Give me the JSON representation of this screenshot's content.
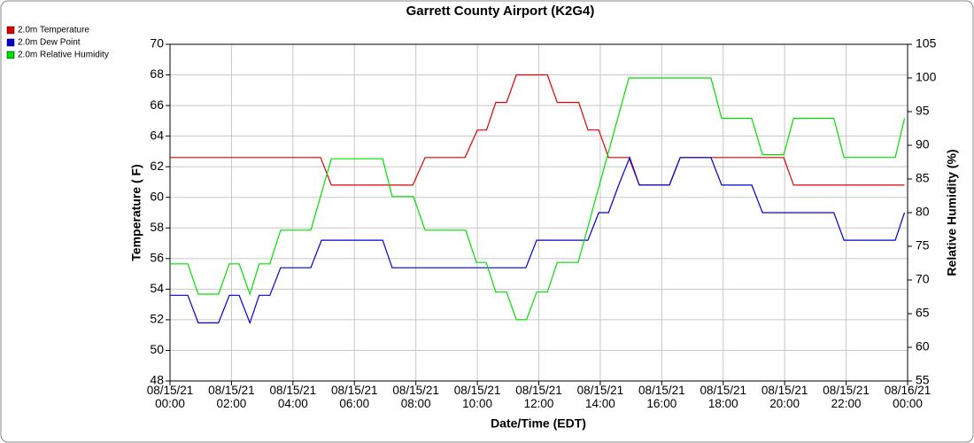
{
  "chart_data": {
    "type": "line",
    "title": "Garrett County Airport (K2G4)",
    "xlabel": "Date/Time (EDT)",
    "ylabel": "Temperature ( F)",
    "y2label": "Relative Humidity (%)",
    "grid": true,
    "legend": "upper left",
    "xlim": [
      0,
      24
    ],
    "xticks": [
      {
        "value": 0,
        "label": "08/15/21 00:00"
      },
      {
        "value": 2,
        "label": "08/15/21 02:00"
      },
      {
        "value": 4,
        "label": "08/15/21 04:00"
      },
      {
        "value": 6,
        "label": "08/15/21 06:00"
      },
      {
        "value": 8,
        "label": "08/15/21 08:00"
      },
      {
        "value": 10,
        "label": "08/15/21 10:00"
      },
      {
        "value": 12,
        "label": "08/15/21 12:00"
      },
      {
        "value": 14,
        "label": "08/15/21 14:00"
      },
      {
        "value": 16,
        "label": "08/15/21 16:00"
      },
      {
        "value": 18,
        "label": "08/15/21 18:00"
      },
      {
        "value": 20,
        "label": "08/15/21 20:00"
      },
      {
        "value": 22,
        "label": "08/15/21 22:00"
      },
      {
        "value": 24,
        "label": "08/16/21 00:00"
      }
    ],
    "ylim": [
      48,
      70
    ],
    "yticks": [
      48,
      50,
      52,
      54,
      56,
      58,
      60,
      62,
      64,
      66,
      68,
      70
    ],
    "y2lim": [
      55,
      105
    ],
    "y2ticks": [
      55,
      60,
      65,
      70,
      75,
      80,
      85,
      90,
      95,
      100,
      105
    ],
    "series": [
      {
        "name": "2.0m Temperature",
        "color": "#e00000",
        "x": [
          0,
          4.9,
          5.25,
          7.9,
          8.3,
          9.6,
          10.0,
          10.3,
          10.6,
          10.95,
          11.27,
          12.28,
          12.6,
          13.3,
          13.6,
          13.95,
          14.27,
          14.93,
          15.27,
          16.25,
          16.6,
          19.97,
          20.29,
          23.9
        ],
        "values": [
          62.6,
          62.6,
          60.8,
          60.8,
          62.6,
          62.6,
          64.4,
          64.4,
          66.2,
          66.2,
          68,
          68,
          66.2,
          66.2,
          64.4,
          64.4,
          62.6,
          62.6,
          60.8,
          60.8,
          62.6,
          62.6,
          60.8,
          60.8
        ]
      },
      {
        "name": "2.0m Dew Point",
        "color": "#0000d0",
        "x": [
          0,
          0.58,
          0.92,
          1.58,
          1.93,
          2.25,
          2.6,
          2.9,
          3.25,
          3.6,
          4.58,
          4.93,
          6.92,
          7.23,
          11.58,
          11.93,
          13.6,
          13.95,
          14.27,
          14.6,
          14.96,
          15.27,
          16.25,
          16.6,
          17.6,
          17.95,
          18.93,
          19.28,
          21.6,
          21.93,
          23.6,
          23.9
        ],
        "values": [
          53.6,
          53.6,
          51.8,
          51.8,
          53.6,
          53.6,
          51.8,
          53.6,
          53.6,
          55.4,
          55.4,
          57.2,
          57.2,
          55.4,
          55.4,
          57.2,
          57.2,
          59,
          59,
          60.8,
          62.6,
          60.8,
          60.8,
          62.6,
          62.6,
          60.8,
          60.8,
          59,
          59,
          57.2,
          57.2,
          59
        ]
      },
      {
        "name": "2.0m Relative Humidity",
        "color": "#00e000",
        "axis": "y2",
        "x": [
          0,
          0.58,
          0.92,
          1.58,
          1.93,
          2.25,
          2.6,
          2.9,
          3.25,
          3.6,
          4.58,
          5.25,
          6.92,
          7.23,
          7.92,
          8.3,
          9.62,
          9.97,
          10.29,
          10.6,
          10.95,
          11.27,
          11.6,
          11.93,
          12.28,
          12.6,
          13.28,
          14.93,
          17.6,
          17.95,
          18.93,
          19.28,
          19.97,
          20.29,
          21.6,
          21.93,
          23.6,
          23.9
        ],
        "values": [
          72.4,
          72.4,
          67.9,
          67.9,
          72.4,
          72.4,
          67.9,
          72.4,
          72.4,
          77.4,
          77.4,
          88,
          88,
          82.4,
          82.4,
          77.4,
          77.4,
          72.6,
          72.6,
          68.2,
          68.2,
          64.1,
          64.1,
          68.2,
          68.2,
          72.6,
          72.6,
          100,
          100,
          94,
          94,
          88.6,
          88.6,
          94,
          94,
          88.2,
          88.2,
          94
        ]
      }
    ]
  }
}
